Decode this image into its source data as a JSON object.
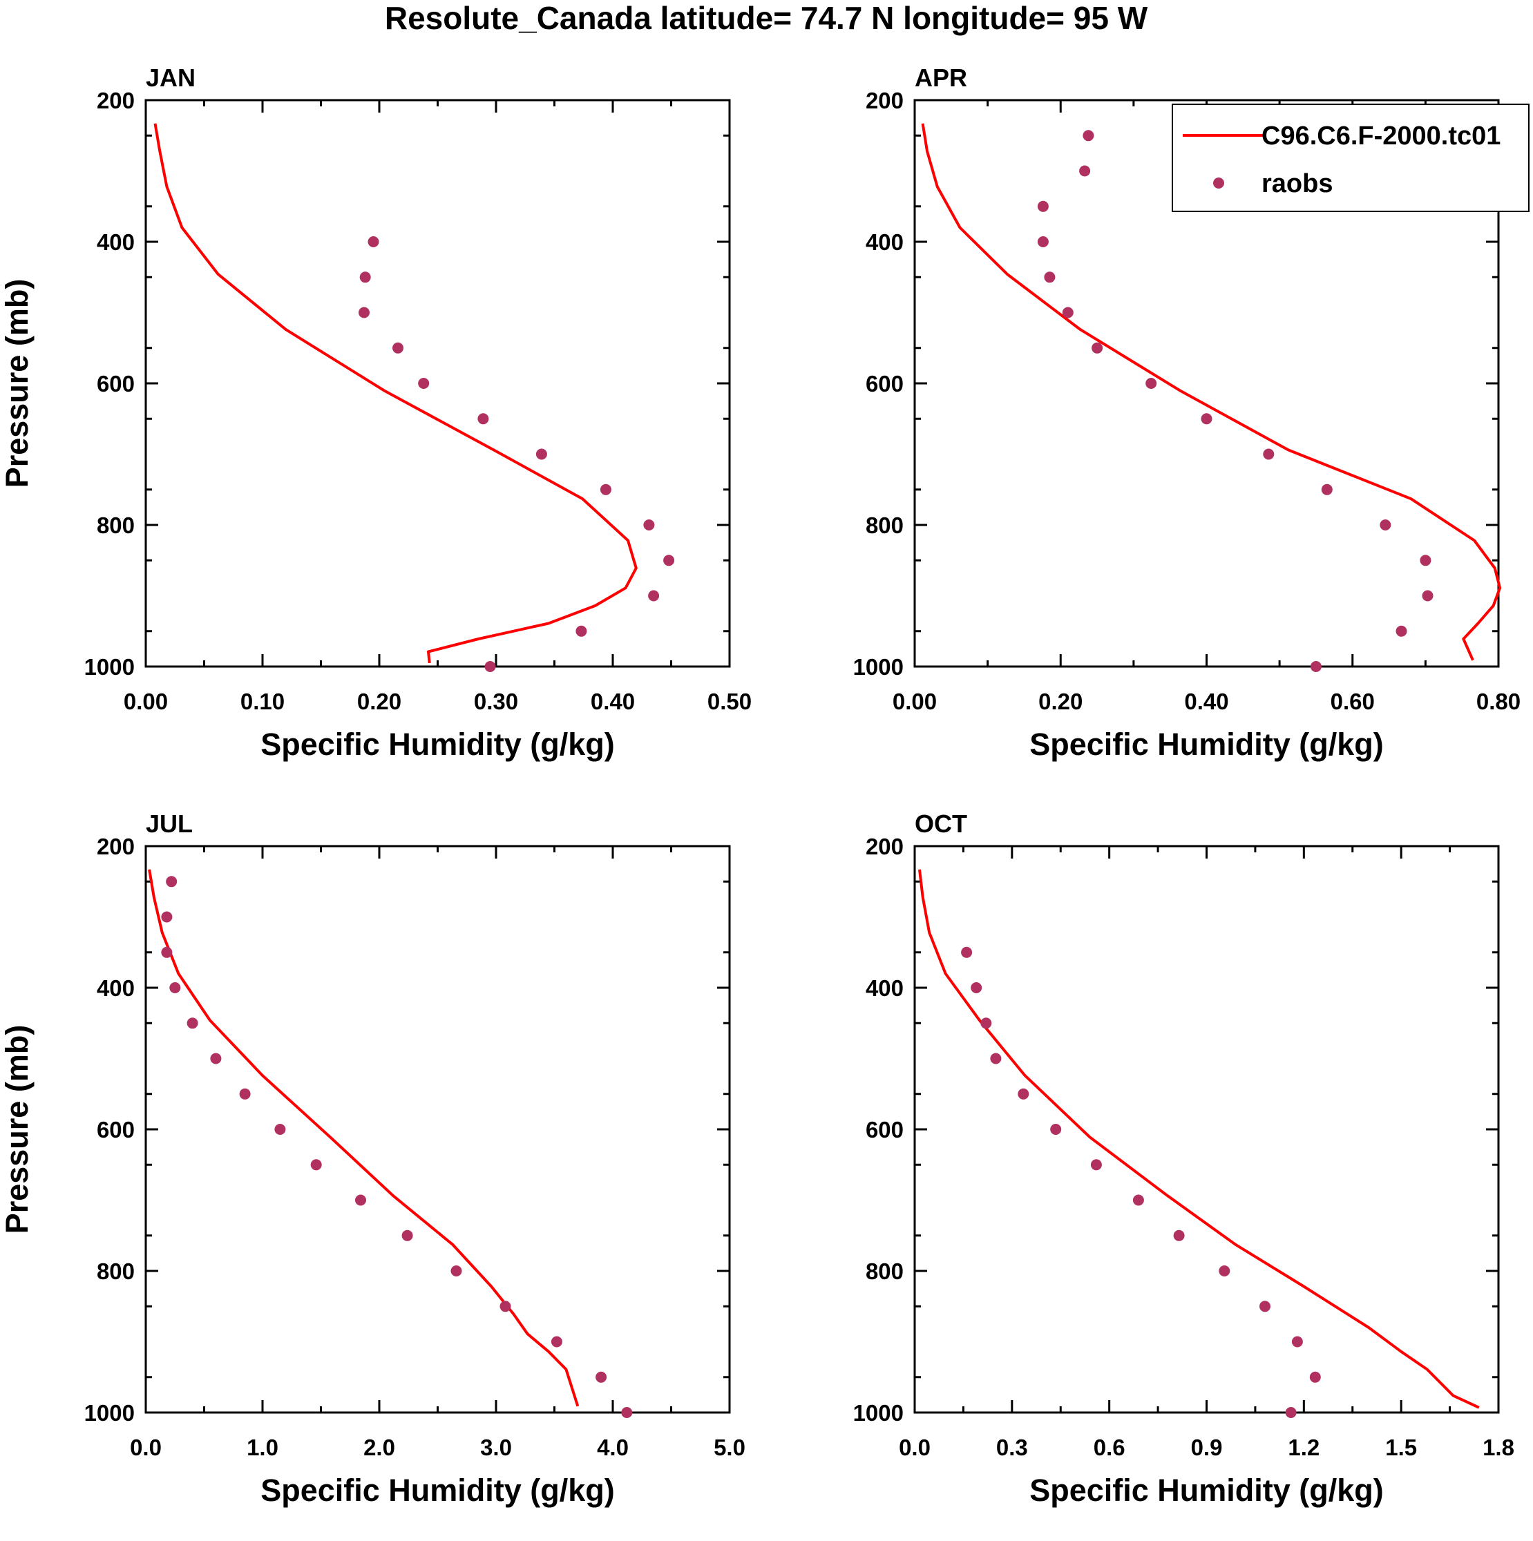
{
  "title": "Resolute_Canada  latitude= 74.7 N longitude= 95 W",
  "colors": {
    "model": "#ff0000",
    "obs": "#b03060",
    "axis": "#000000",
    "background": "#ffffff"
  },
  "legend": {
    "model_label": "C96.C6.F-2000.tc01",
    "obs_label": "raobs",
    "position": "top-right of APR panel"
  },
  "chart_data": [
    {
      "type": "line+scatter",
      "panel_title": "JAN",
      "xlabel": "Specific Humidity (g/kg)",
      "ylabel": "Pressure (mb)",
      "xlim": [
        0.0,
        0.5
      ],
      "ylim": [
        200,
        1000
      ],
      "yaxis_inverted": true,
      "xticks": [
        0.0,
        0.1,
        0.2,
        0.3,
        0.4,
        0.5
      ],
      "xtick_labels": [
        "0.00",
        "0.10",
        "0.20",
        "0.30",
        "0.40",
        "0.50"
      ],
      "yticks": [
        200,
        400,
        600,
        800,
        1000
      ],
      "ytick_labels": [
        "200",
        "400",
        "600",
        "800",
        "1000"
      ],
      "series": [
        {
          "name": "C96.C6.F-2000.tc01",
          "kind": "line",
          "x": [
            0.008,
            0.012,
            0.018,
            0.031,
            0.062,
            0.12,
            0.205,
            0.298,
            0.374,
            0.413,
            0.42,
            0.411,
            0.385,
            0.345,
            0.285,
            0.242,
            0.243
          ],
          "y": [
            233,
            272,
            322,
            380,
            446,
            524,
            611,
            694,
            763,
            822,
            861,
            889,
            914,
            939,
            961,
            979,
            995
          ]
        },
        {
          "name": "raobs",
          "kind": "scatter",
          "x": [
            0.195,
            0.188,
            0.187,
            0.216,
            0.238,
            0.289,
            0.339,
            0.394,
            0.431,
            0.448,
            0.435,
            0.373,
            0.295
          ],
          "y": [
            400,
            450,
            500,
            550,
            600,
            650,
            700,
            750,
            800,
            850,
            900,
            950,
            1000
          ]
        }
      ]
    },
    {
      "type": "line+scatter",
      "panel_title": "APR",
      "xlabel": "Specific Humidity (g/kg)",
      "ylabel": "",
      "xlim": [
        0.0,
        0.8
      ],
      "ylim": [
        200,
        1000
      ],
      "yaxis_inverted": true,
      "xticks": [
        0.0,
        0.2,
        0.4,
        0.6,
        0.8
      ],
      "xtick_labels": [
        "0.00",
        "0.20",
        "0.40",
        "0.60",
        "0.80"
      ],
      "yticks": [
        200,
        400,
        600,
        800,
        1000
      ],
      "ytick_labels": [
        "200",
        "400",
        "600",
        "800",
        "1000"
      ],
      "series": [
        {
          "name": "C96.C6.F-2000.tc01",
          "kind": "line",
          "x": [
            0.011,
            0.017,
            0.031,
            0.062,
            0.127,
            0.227,
            0.365,
            0.512,
            0.68,
            0.767,
            0.795,
            0.802,
            0.793,
            0.772,
            0.752,
            0.765
          ],
          "y": [
            233,
            272,
            322,
            380,
            446,
            524,
            611,
            694,
            763,
            822,
            861,
            889,
            914,
            939,
            961,
            991
          ]
        },
        {
          "name": "raobs",
          "kind": "scatter",
          "x": [
            0.238,
            0.233,
            0.176,
            0.176,
            0.185,
            0.21,
            0.25,
            0.324,
            0.4,
            0.485,
            0.565,
            0.645,
            0.7,
            0.703,
            0.667,
            0.55
          ],
          "y": [
            250,
            300,
            350,
            400,
            450,
            500,
            550,
            600,
            650,
            700,
            750,
            800,
            850,
            900,
            950,
            1000
          ]
        }
      ]
    },
    {
      "type": "line+scatter",
      "panel_title": "JUL",
      "xlabel": "Specific Humidity (g/kg)",
      "ylabel": "Pressure (mb)",
      "xlim": [
        0.0,
        5.0
      ],
      "ylim": [
        200,
        1000
      ],
      "yaxis_inverted": true,
      "xticks": [
        0.0,
        1.0,
        2.0,
        3.0,
        4.0,
        5.0
      ],
      "xtick_labels": [
        "0.0",
        "1.0",
        "2.0",
        "3.0",
        "4.0",
        "5.0"
      ],
      "yticks": [
        200,
        400,
        600,
        800,
        1000
      ],
      "ytick_labels": [
        "200",
        "400",
        "600",
        "800",
        "1000"
      ],
      "series": [
        {
          "name": "C96.C6.F-2000.tc01",
          "kind": "line",
          "x": [
            0.03,
            0.07,
            0.14,
            0.28,
            0.55,
            1.0,
            1.58,
            2.12,
            2.63,
            2.96,
            3.15,
            3.27,
            3.45,
            3.6,
            3.7
          ],
          "y": [
            233,
            272,
            322,
            380,
            446,
            524,
            611,
            694,
            763,
            822,
            861,
            889,
            914,
            939,
            991
          ]
        },
        {
          "name": "raobs",
          "kind": "scatter",
          "x": [
            0.22,
            0.18,
            0.18,
            0.25,
            0.4,
            0.6,
            0.85,
            1.15,
            1.46,
            1.84,
            2.24,
            2.66,
            3.08,
            3.52,
            3.9,
            4.12
          ],
          "y": [
            250,
            300,
            350,
            400,
            450,
            500,
            550,
            600,
            650,
            700,
            750,
            800,
            850,
            900,
            950,
            1000
          ]
        }
      ]
    },
    {
      "type": "line+scatter",
      "panel_title": "OCT",
      "xlabel": "Specific Humidity (g/kg)",
      "ylabel": "",
      "xlim": [
        0.0,
        1.8
      ],
      "ylim": [
        200,
        1000
      ],
      "yaxis_inverted": true,
      "xticks": [
        0.0,
        0.3,
        0.6,
        0.9,
        1.2,
        1.5,
        1.8
      ],
      "xtick_labels": [
        "0.0",
        "0.3",
        "0.6",
        "0.9",
        "1.2",
        "1.5",
        "1.8"
      ],
      "yticks": [
        200,
        400,
        600,
        800,
        1000
      ],
      "ytick_labels": [
        "200",
        "400",
        "600",
        "800",
        "1000"
      ],
      "series": [
        {
          "name": "C96.C6.F-2000.tc01",
          "kind": "line",
          "x": [
            0.015,
            0.025,
            0.045,
            0.095,
            0.2,
            0.34,
            0.54,
            0.78,
            0.99,
            1.2,
            1.4,
            1.5,
            1.58,
            1.66,
            1.74
          ],
          "y": [
            233,
            272,
            322,
            380,
            446,
            524,
            611,
            694,
            763,
            822,
            880,
            914,
            939,
            976,
            993
          ]
        },
        {
          "name": "raobs",
          "kind": "scatter",
          "x": [
            0.16,
            0.19,
            0.22,
            0.25,
            0.335,
            0.435,
            0.56,
            0.69,
            0.815,
            0.955,
            1.08,
            1.18,
            1.235,
            1.16
          ],
          "y": [
            350,
            400,
            450,
            500,
            550,
            600,
            650,
            700,
            750,
            800,
            850,
            900,
            950,
            1000
          ]
        }
      ]
    }
  ]
}
